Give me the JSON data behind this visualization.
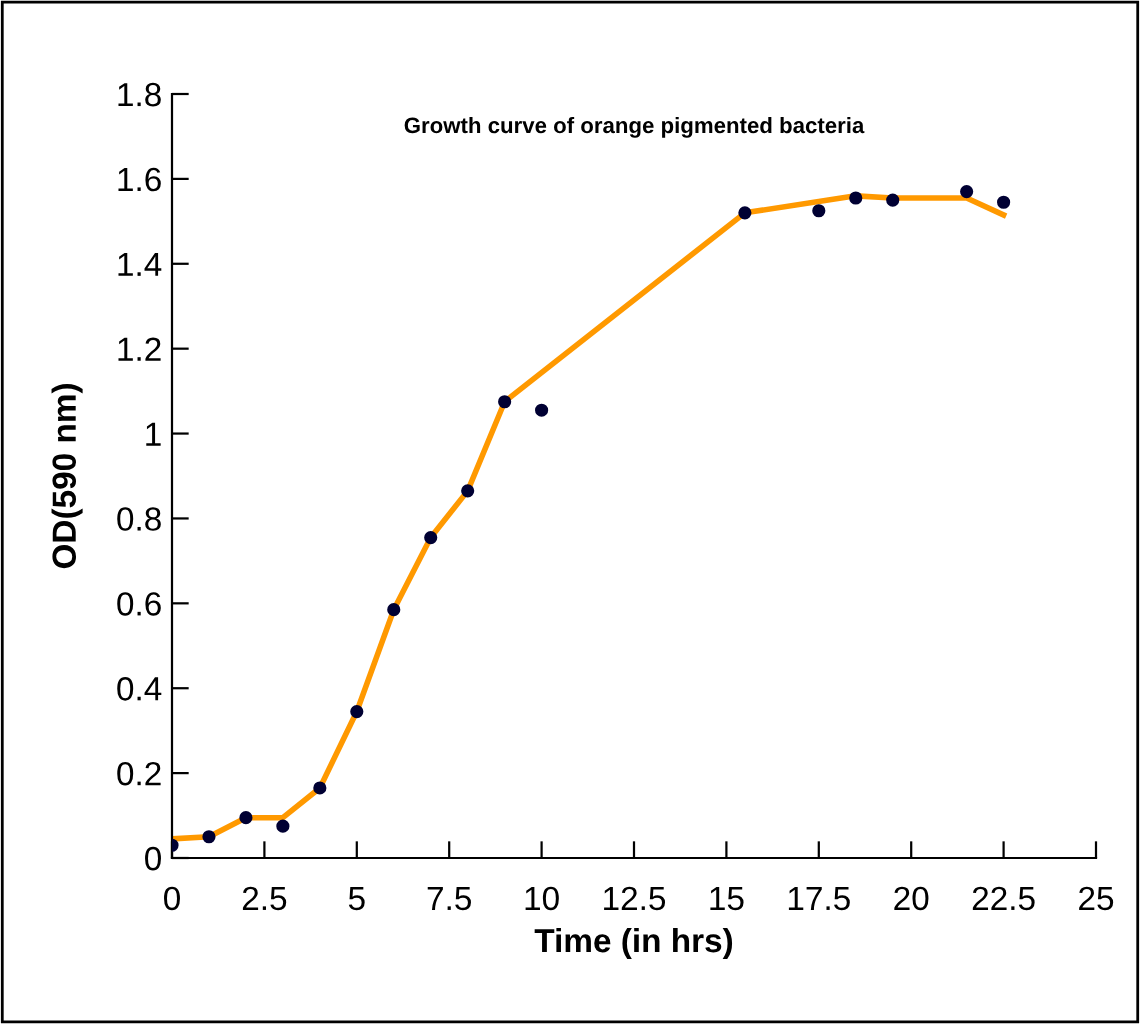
{
  "chart_data": {
    "type": "line",
    "title": "Growth curve of orange pigmented bacteria",
    "xlabel": "Time (in hrs)",
    "ylabel": "OD(590 nm)",
    "series": [
      {
        "type": "scatter",
        "color": "#000033",
        "marker": "circle",
        "x": [
          0,
          1,
          2,
          3,
          4,
          5,
          6,
          7,
          8,
          9,
          10,
          15.5,
          17.5,
          18.5,
          19.5,
          21.5,
          22.5
        ],
        "values": [
          0.03,
          0.05,
          0.095,
          0.075,
          0.165,
          0.345,
          0.585,
          0.755,
          0.865,
          1.075,
          1.055,
          1.52,
          1.525,
          1.555,
          1.55,
          1.57,
          1.545
        ]
      },
      {
        "color": "#ff9900",
        "marker": "none",
        "line_style": "solid",
        "x": [
          0,
          1,
          2,
          3,
          4,
          5,
          6,
          7,
          8,
          9,
          15.5,
          18.5,
          19.5,
          21.5,
          22.5
        ],
        "values": [
          0.045,
          0.05,
          0.095,
          0.095,
          0.165,
          0.345,
          0.585,
          0.755,
          0.865,
          1.075,
          1.52,
          1.56,
          1.555,
          1.555,
          1.515
        ]
      }
    ],
    "xlim": [
      0,
      25
    ],
    "xticks": [
      0,
      2.5,
      5,
      7.5,
      10,
      12.5,
      15,
      17.5,
      20,
      22.5,
      25
    ],
    "ylim": [
      0,
      1.8
    ],
    "yticks": [
      0,
      0.2,
      0.4,
      0.6,
      0.8,
      {
        "value": 1,
        "label": "1"
      },
      1.2,
      1.4,
      1.6,
      1.8
    ],
    "grid": false,
    "legend": false
  }
}
